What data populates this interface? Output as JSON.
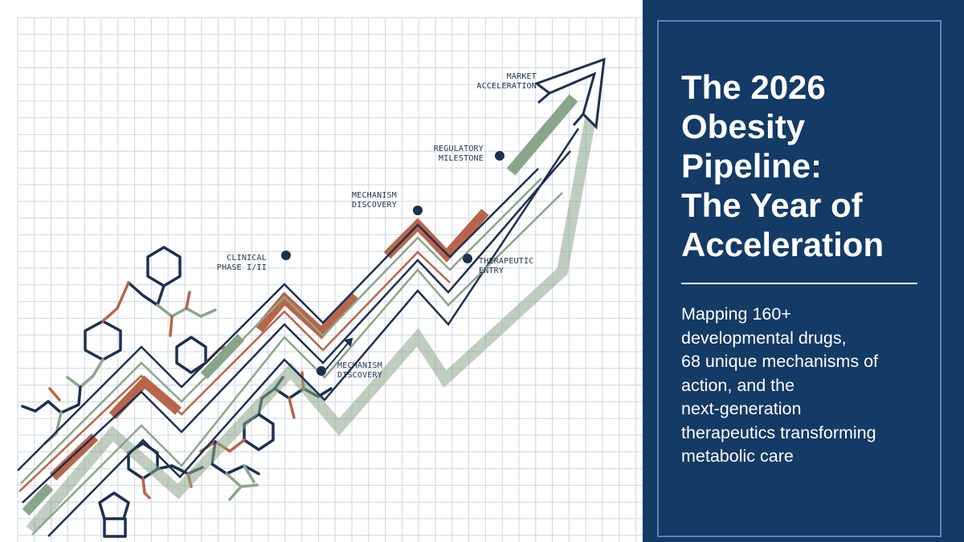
{
  "colors": {
    "navy": "#1c3150",
    "sage": "#8aa68a",
    "terracotta": "#b8654a",
    "grid": "#cfd6df",
    "panel_bg": "#143a66",
    "panel_frame": "#5a86b6"
  },
  "graphic": {
    "labels": {
      "market": "MARKET\nACCELERATION",
      "regulatory": "REGULATORY\nMILESTONE",
      "mechanism_top": "MECHANISM\nDISCOVERY",
      "clinical": "CLINICAL\nPHASE I/II",
      "therapeutic": "THERAPEUTIC\nENTRY",
      "mechanism_low": "MECHANISM\nDISCOVERY"
    }
  },
  "panel": {
    "title": "The 2026\nObesity\nPipeline:\nThe Year of\nAcceleration",
    "subtitle": "Mapping 160+\ndevelopmental drugs,\n68 unique mechanisms of\naction, and the\nnext-generation\ntherapeutics transforming\nmetabolic care"
  }
}
